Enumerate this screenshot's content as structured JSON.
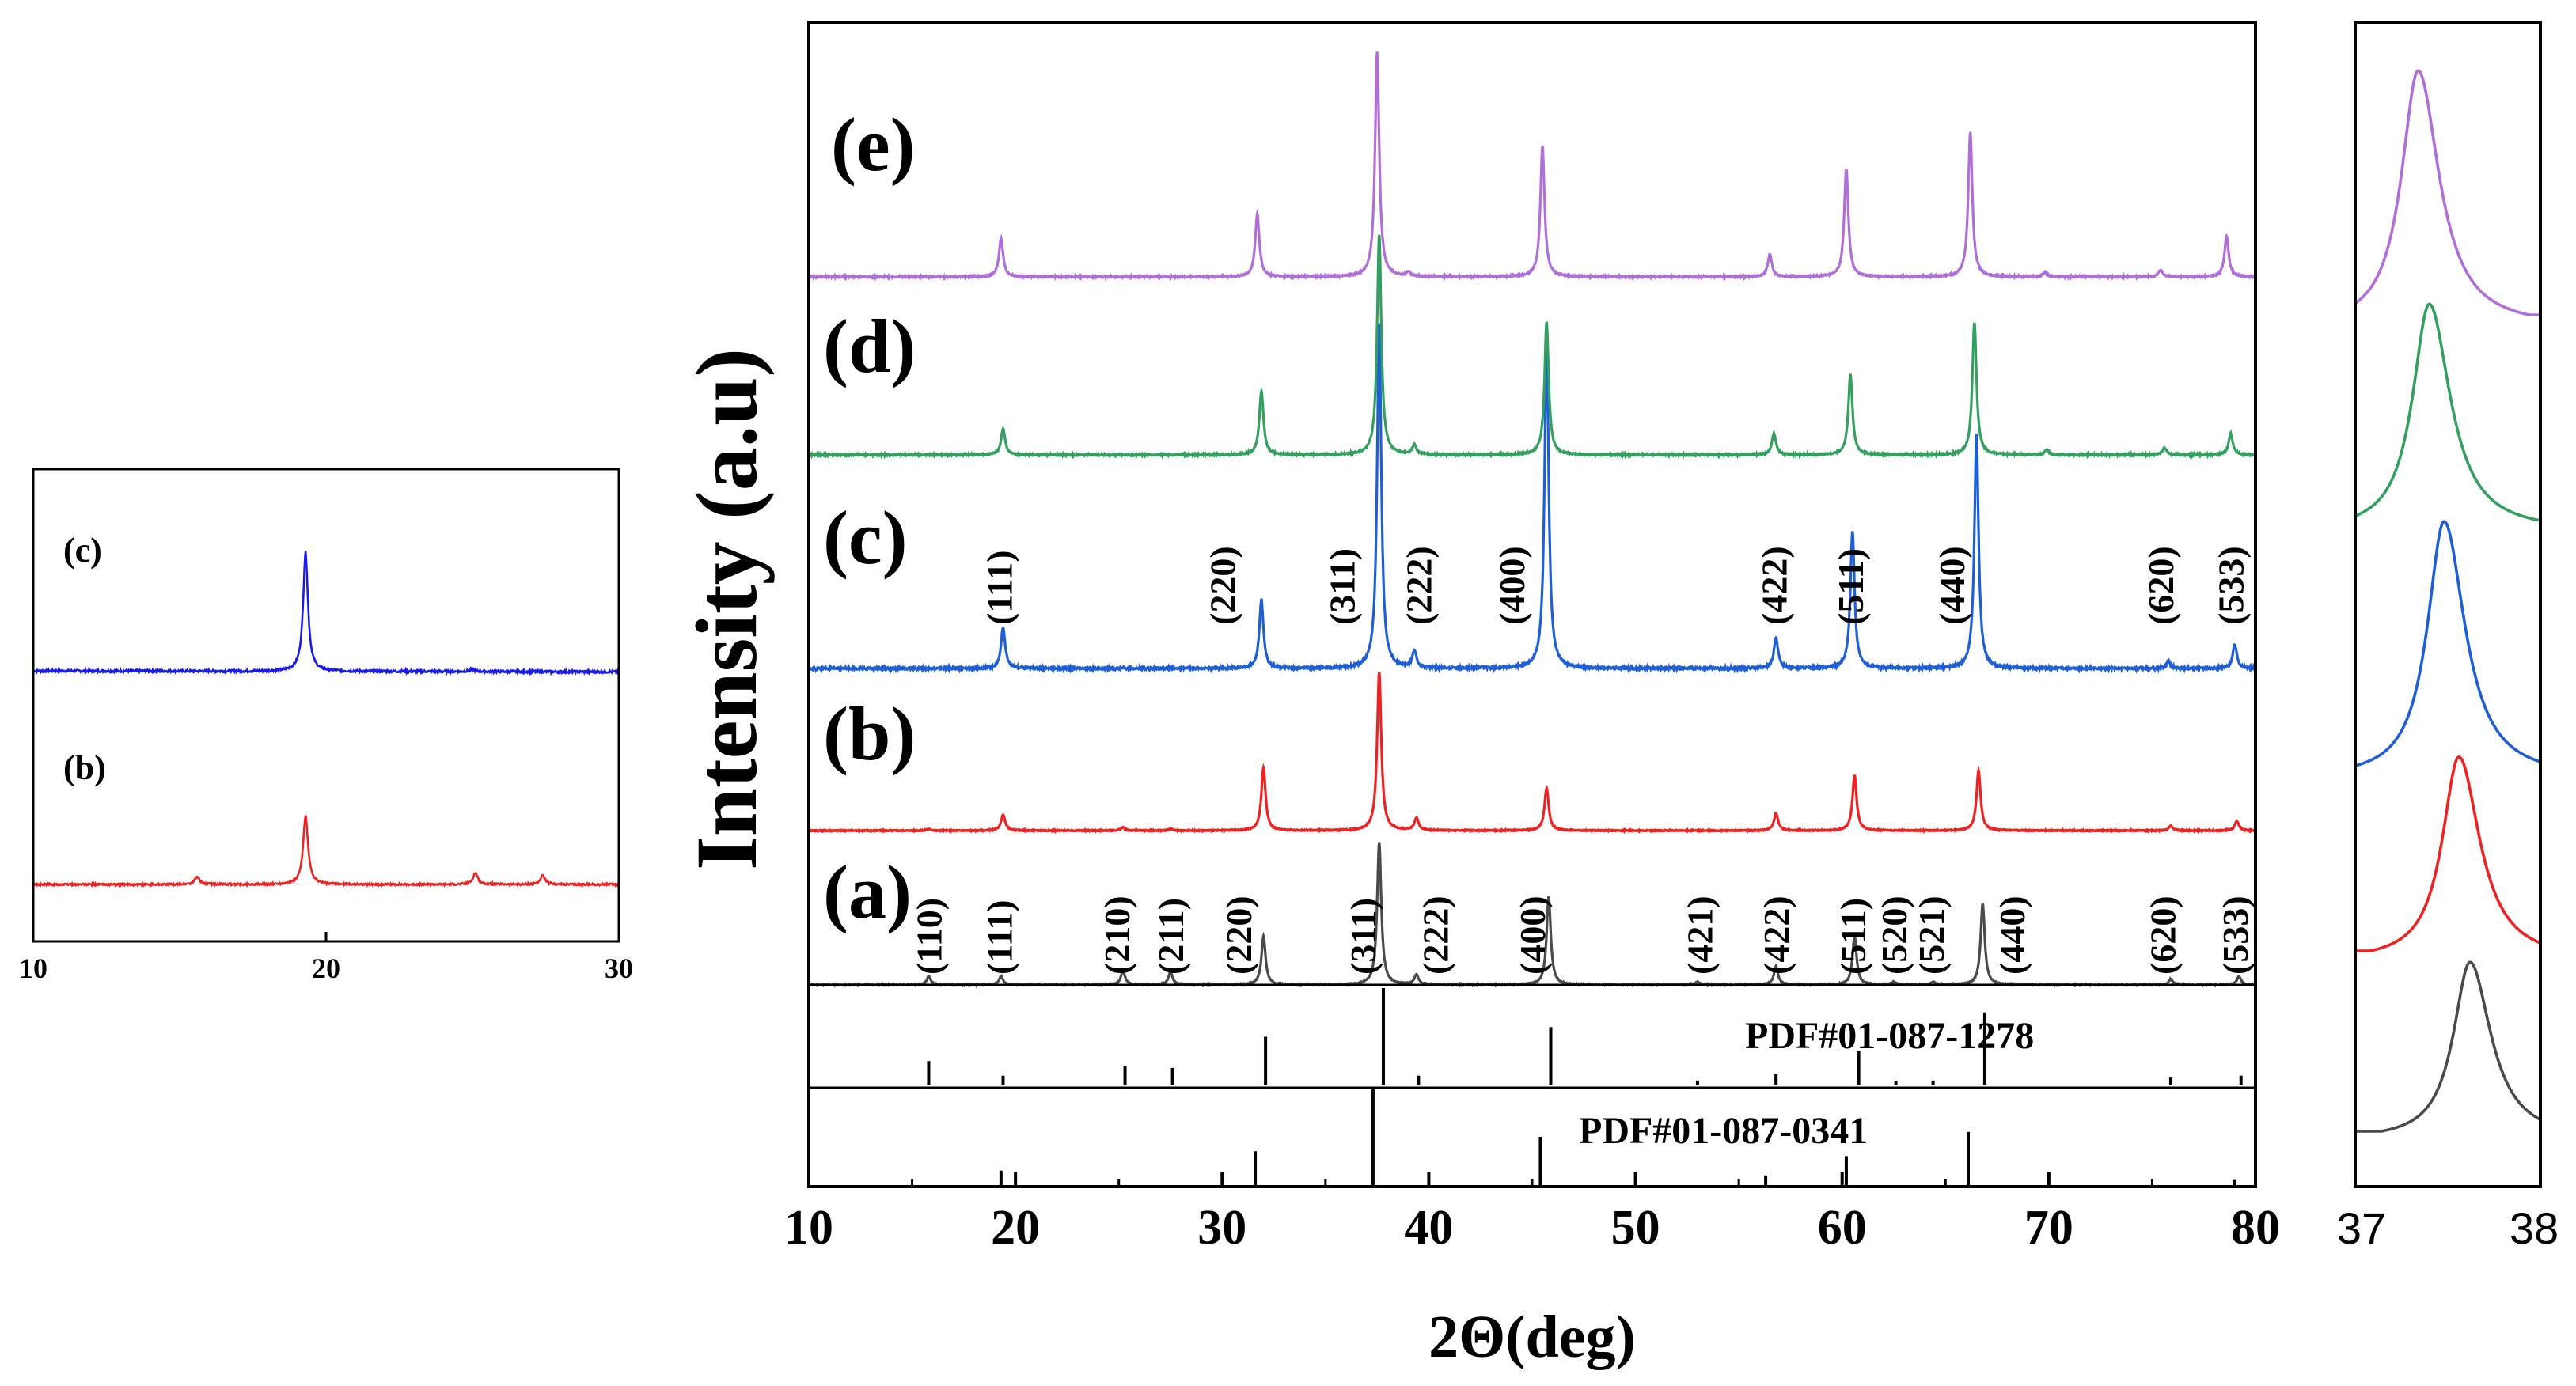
{
  "colors": {
    "a": "#4a4a4a",
    "b": "#ee2222",
    "c": "#1f5fd6",
    "d": "#33a060",
    "e": "#b06fd8",
    "inset_c": "#1a1aee",
    "inset_b": "#ee2222",
    "ref": "#000000"
  },
  "chart_data": [
    {
      "id": "main",
      "type": "line",
      "title": "",
      "xlabel": "2Θ(deg)",
      "ylabel": "Intensity (a.u)",
      "xlim": [
        10,
        80
      ],
      "xticks": [
        10,
        20,
        30,
        40,
        50,
        60,
        70,
        80
      ],
      "series": [
        {
          "name": "(a)",
          "peaks": [
            [
              15.8,
              0.06
            ],
            [
              19.3,
              0.06
            ],
            [
              25.2,
              0.1
            ],
            [
              27.5,
              0.09
            ],
            [
              32.0,
              0.34
            ],
            [
              37.6,
              1.0
            ],
            [
              39.4,
              0.07
            ],
            [
              45.8,
              0.62
            ],
            [
              53.0,
              0.02
            ],
            [
              56.8,
              0.13
            ],
            [
              60.6,
              0.34
            ],
            [
              62.5,
              0.02
            ],
            [
              64.4,
              0.02
            ],
            [
              66.8,
              0.57
            ],
            [
              75.9,
              0.04
            ],
            [
              79.2,
              0.06
            ]
          ],
          "annotations": [
            [
              "(110)",
              15.8
            ],
            [
              "(111)",
              19.2
            ],
            [
              "(210)",
              24.9
            ],
            [
              "(211)",
              27.5
            ],
            [
              "(220)",
              30.8
            ],
            [
              "(311)",
              36.8
            ],
            [
              "(222)",
              40.3
            ],
            [
              "(400)",
              45.0
            ],
            [
              "(421)",
              53.1
            ],
            [
              "(422)",
              56.8
            ],
            [
              "(511)",
              60.5
            ],
            [
              "(520)",
              62.5
            ],
            [
              "(521)",
              64.3
            ],
            [
              "(440)",
              68.2
            ],
            [
              "(620)",
              75.5
            ],
            [
              "(533)",
              79.0
            ]
          ]
        },
        {
          "name": "(b)",
          "peaks": [
            [
              15.8,
              0.01
            ],
            [
              19.4,
              0.1
            ],
            [
              25.2,
              0.02
            ],
            [
              27.5,
              0.01
            ],
            [
              32.0,
              0.4
            ],
            [
              37.6,
              1.0
            ],
            [
              39.4,
              0.08
            ],
            [
              45.7,
              0.27
            ],
            [
              56.8,
              0.11
            ],
            [
              60.6,
              0.35
            ],
            [
              66.6,
              0.38
            ],
            [
              75.9,
              0.03
            ],
            [
              79.1,
              0.06
            ]
          ],
          "annotations": []
        },
        {
          "name": "(c)",
          "peaks": [
            [
              19.4,
              0.12
            ],
            [
              31.9,
              0.2
            ],
            [
              37.6,
              1.0
            ],
            [
              39.3,
              0.05
            ],
            [
              45.7,
              0.96
            ],
            [
              56.8,
              0.09
            ],
            [
              60.5,
              0.4
            ],
            [
              66.5,
              0.68
            ],
            [
              75.8,
              0.02
            ],
            [
              79.0,
              0.07
            ]
          ],
          "annotations": [
            [
              "(111)",
              19.2
            ],
            [
              "(220)",
              30.0
            ],
            [
              "(311)",
              35.8
            ],
            [
              "(222)",
              39.5
            ],
            [
              "(400)",
              44.0
            ],
            [
              "(422)",
              56.7
            ],
            [
              "(511)",
              60.4
            ],
            [
              "(440)",
              65.3
            ],
            [
              "(620)",
              75.4
            ],
            [
              "(533)",
              78.8
            ]
          ]
        },
        {
          "name": "(d)",
          "peaks": [
            [
              19.4,
              0.11
            ],
            [
              31.9,
              0.27
            ],
            [
              37.6,
              0.93
            ],
            [
              39.3,
              0.04
            ],
            [
              45.7,
              0.56
            ],
            [
              56.7,
              0.09
            ],
            [
              60.4,
              0.34
            ],
            [
              66.4,
              0.56
            ],
            [
              69.9,
              0.02
            ],
            [
              75.6,
              0.03
            ],
            [
              78.8,
              0.09
            ]
          ],
          "annotations": []
        },
        {
          "name": "(e)",
          "peaks": [
            [
              19.3,
              0.17
            ],
            [
              31.7,
              0.28
            ],
            [
              37.5,
              1.0
            ],
            [
              39.0,
              0.02
            ],
            [
              45.5,
              0.58
            ],
            [
              56.5,
              0.1
            ],
            [
              60.2,
              0.48
            ],
            [
              66.2,
              0.64
            ],
            [
              69.8,
              0.02
            ],
            [
              75.4,
              0.03
            ],
            [
              78.6,
              0.18
            ]
          ],
          "annotations": []
        }
      ],
      "reference_patterns": [
        {
          "label": "PDF#01-087-1278",
          "lines": [
            [
              15.8,
              0.25
            ],
            [
              19.4,
              0.1
            ],
            [
              25.3,
              0.2
            ],
            [
              27.6,
              0.18
            ],
            [
              32.1,
              0.5
            ],
            [
              37.8,
              1.0
            ],
            [
              39.5,
              0.1
            ],
            [
              45.9,
              0.6
            ],
            [
              53.0,
              0.05
            ],
            [
              56.8,
              0.12
            ],
            [
              60.8,
              0.35
            ],
            [
              62.6,
              0.04
            ],
            [
              64.4,
              0.05
            ],
            [
              66.9,
              0.75
            ],
            [
              75.9,
              0.08
            ],
            [
              79.3,
              0.1
            ]
          ]
        },
        {
          "label": "PDF#01-087-0341",
          "lines": [
            [
              19.3,
              0.15
            ],
            [
              31.6,
              0.35
            ],
            [
              37.3,
              1.0
            ],
            [
              45.4,
              0.5
            ],
            [
              56.3,
              0.1
            ],
            [
              60.2,
              0.3
            ],
            [
              66.1,
              0.55
            ],
            [
              79.0,
              0.06
            ]
          ]
        }
      ]
    },
    {
      "id": "inset",
      "type": "line",
      "xlim": [
        10,
        30
      ],
      "xticks": [
        10,
        20,
        30
      ],
      "series": [
        {
          "name": "(c)",
          "peaks": [
            [
              19.3,
              1.0
            ],
            [
              25.0,
              0.02
            ]
          ]
        },
        {
          "name": "(b)",
          "peaks": [
            [
              15.6,
              0.08
            ],
            [
              19.3,
              0.72
            ],
            [
              25.1,
              0.12
            ],
            [
              27.4,
              0.09
            ]
          ]
        }
      ]
    },
    {
      "id": "zoom",
      "type": "line",
      "xlim": [
        37,
        38
      ],
      "xticks": [
        37,
        38
      ],
      "series": [
        {
          "name": "(e)",
          "center": 37.34
        },
        {
          "name": "(d)",
          "center": 37.4
        },
        {
          "name": "(c)",
          "center": 37.48
        },
        {
          "name": "(b)",
          "center": 37.56
        },
        {
          "name": "(a)",
          "center": 37.62
        }
      ]
    }
  ]
}
